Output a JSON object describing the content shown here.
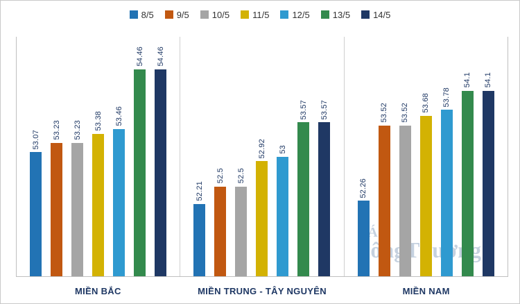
{
  "chart_data": {
    "type": "bar",
    "title": "",
    "categories": [
      "MIỀN BẮC",
      "MIỀN TRUNG - TÂY NGUYÊN",
      "MIỀN NAM"
    ],
    "series": [
      {
        "name": "8/5",
        "color": "#2273b4",
        "values": [
          53.07,
          52.21,
          52.26
        ]
      },
      {
        "name": "9/5",
        "color": "#c15811",
        "values": [
          53.23,
          52.5,
          53.52
        ]
      },
      {
        "name": "10/5",
        "color": "#a5a5a5",
        "values": [
          53.23,
          52.5,
          53.52
        ]
      },
      {
        "name": "11/5",
        "color": "#d3b203",
        "values": [
          53.38,
          52.92,
          53.68
        ]
      },
      {
        "name": "12/5",
        "color": "#2f9ad0",
        "values": [
          53.46,
          53,
          53.78
        ]
      },
      {
        "name": "13/5",
        "color": "#338a4d",
        "values": [
          54.46,
          53.57,
          54.1
        ]
      },
      {
        "name": "14/5",
        "color": "#1f3864",
        "values": [
          54.46,
          53.57,
          54.1
        ]
      }
    ],
    "ylim": [
      51,
      55
    ],
    "grid": false,
    "legend_position": "top",
    "label_color": "#1f3864",
    "watermark": {
      "text": "ôngThương",
      "accent": "Á"
    }
  }
}
